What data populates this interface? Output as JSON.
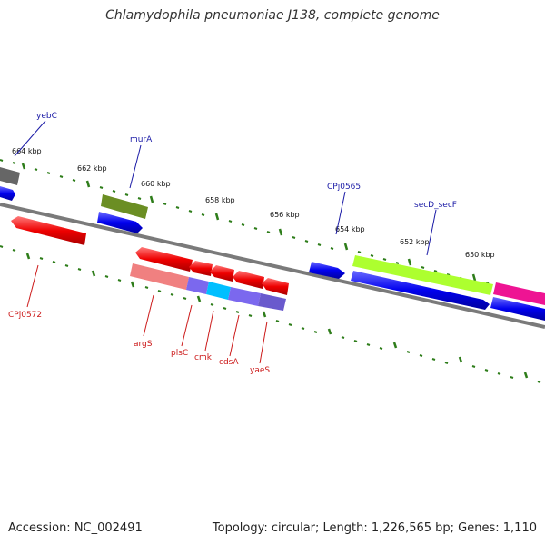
{
  "title": "Chlamydophila pneumoniae J138, complete genome",
  "footer": {
    "accession": "Accession: NC_002491",
    "summary": "Topology: circular; Length: 1,226,565 bp; Genes: 1,110"
  },
  "colors": {
    "backbone": "#7a7a7a",
    "tick": "#2e7d1a",
    "forward_label": "#1a1aa6",
    "reverse_label": "#cc1a1a"
  },
  "ruler_labels": [
    "664 kbp",
    "662 kbp",
    "660 kbp",
    "658 kbp",
    "656 kbp",
    "654 kbp",
    "652 kbp",
    "650 kbp"
  ],
  "gene_labels": {
    "forward": [
      "yebC",
      "murA",
      "CPj0565",
      "secD_secF"
    ],
    "reverse": [
      "CPj0572",
      "argS",
      "plsC",
      "cmk",
      "cdsA",
      "yaeS"
    ]
  }
}
